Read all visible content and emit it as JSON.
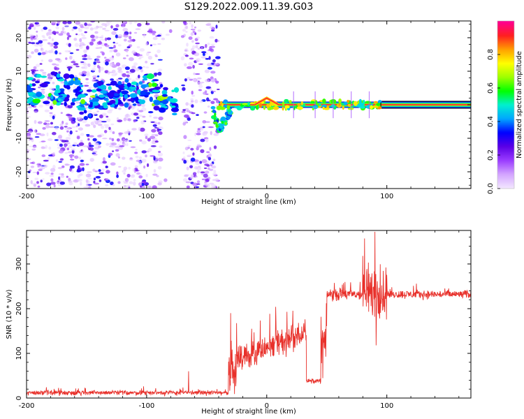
{
  "figure": {
    "title": "S129.2022.009.11.39.G03"
  },
  "chart_data": [
    {
      "type": "heatmap",
      "title": "S129.2022.009.11.39.G03",
      "xlabel": "Height of straight line (km)",
      "ylabel": "Frequency (Hz)",
      "xlim": [
        -200,
        170
      ],
      "ylim": [
        -25,
        25
      ],
      "xticks": [
        -200,
        -100,
        0,
        100
      ],
      "yticks": [
        -20,
        -10,
        0,
        10,
        20
      ],
      "colorbar": {
        "label": "Normalized spectral amplitude",
        "range": [
          0,
          1
        ],
        "ticks": [
          0.0,
          0.2,
          0.4,
          0.6,
          0.8
        ],
        "tick_labels": [
          "0.0",
          "0.2",
          "0.4",
          "0.6",
          "0.8"
        ],
        "colormap": [
          "#f2e6ff",
          "#d3a4ff",
          "#9a3cff",
          "#5a00e6",
          "#0000ff",
          "#00a6ff",
          "#00f0d0",
          "#00ff00",
          "#9cff00",
          "#ffff00",
          "#ffa000",
          "#ff2020",
          "#ff0090"
        ]
      },
      "features": {
        "noise_region_x": [
          -200,
          -40
        ],
        "noise_gap_x": [
          -80,
          -70
        ],
        "signal_track": {
          "x": [
            -200,
            -180,
            -160,
            -150,
            -140,
            -120,
            -100,
            -90,
            -80,
            -75
          ],
          "y": [
            4,
            5,
            4,
            0,
            3,
            4,
            5,
            3,
            1,
            0
          ]
        },
        "dip": {
          "x": [
            -45,
            -40,
            -35,
            -30
          ],
          "y": [
            -2,
            -7,
            -5,
            -1
          ]
        },
        "steady_line": {
          "x": [
            -40,
            170
          ],
          "y": [
            0,
            0
          ]
        },
        "bump": {
          "x": [
            -10,
            -5,
            0,
            5,
            10
          ],
          "y": [
            0,
            1,
            2,
            1,
            0
          ]
        }
      }
    },
    {
      "type": "line",
      "xlabel": "Height of straight line (km)",
      "ylabel": "SNR (10 * v/v)",
      "xlim": [
        -200,
        170
      ],
      "ylim": [
        0,
        375
      ],
      "xticks": [
        -200,
        -100,
        0,
        100
      ],
      "yticks": [
        0,
        100,
        200,
        300
      ],
      "color": "#e8302a",
      "segments": [
        {
          "x0": -200,
          "x1": -32,
          "base": 12,
          "noise": 8
        },
        {
          "x0": -32,
          "x1": -25,
          "base": 60,
          "noise": 60
        },
        {
          "x0": -25,
          "x1": 30,
          "base": 115,
          "noise": 45
        },
        {
          "x0": 30,
          "x1": 33,
          "base": 160,
          "noise": 40
        },
        {
          "x0": 33,
          "x1": 45,
          "base": 38,
          "noise": 8
        },
        {
          "x0": 45,
          "x1": 50,
          "base": 120,
          "noise": 100
        },
        {
          "x0": 50,
          "x1": 80,
          "base": 232,
          "noise": 20
        },
        {
          "x0": 80,
          "x1": 100,
          "base": 235,
          "noise": 90
        },
        {
          "x0": 100,
          "x1": 170,
          "base": 232,
          "noise": 14
        }
      ],
      "peaks": [
        {
          "x": 90,
          "y": 372
        },
        {
          "x": 91,
          "y": 118
        },
        {
          "x": 80,
          "y": 318
        },
        {
          "x": -65,
          "y": 60
        },
        {
          "x": -30,
          "y": 190
        }
      ]
    }
  ]
}
